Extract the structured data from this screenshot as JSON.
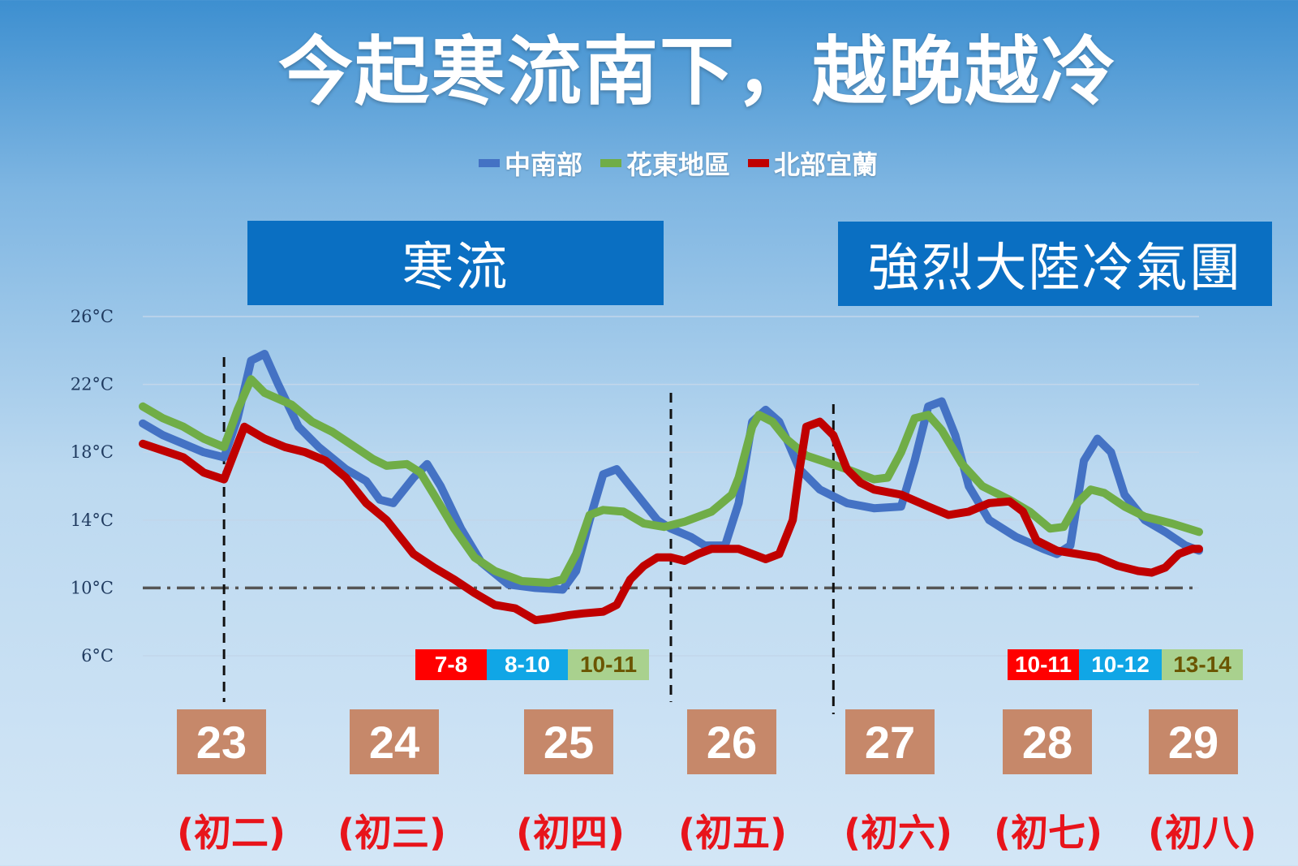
{
  "title": "今起寒流南下，越晚越冷",
  "banners": [
    "寒流",
    "強烈大陸冷氣團"
  ],
  "chart_data": {
    "type": "line",
    "legend_position": "top",
    "y_ticks": [
      "26°C",
      "22°C",
      "18°C",
      "14°C",
      "10°C",
      "6°C"
    ],
    "ylim": [
      6,
      26
    ],
    "x_range": [
      0,
      156
    ],
    "reference_line": {
      "y": 10,
      "style": "dash-dot"
    },
    "day_dividers_x": [
      12,
      78,
      102
    ],
    "series": [
      {
        "name": "中南部",
        "color": "#4472c4",
        "points": [
          [
            0,
            19.7
          ],
          [
            3,
            19
          ],
          [
            6,
            18.5
          ],
          [
            9,
            18
          ],
          [
            12,
            17.7
          ],
          [
            14,
            20
          ],
          [
            16,
            23.4
          ],
          [
            18,
            23.8
          ],
          [
            20,
            22
          ],
          [
            23,
            19.5
          ],
          [
            26,
            18.3
          ],
          [
            30,
            17
          ],
          [
            33,
            16.3
          ],
          [
            35,
            15.2
          ],
          [
            37,
            15
          ],
          [
            40,
            16.5
          ],
          [
            42,
            17.3
          ],
          [
            44,
            16
          ],
          [
            47,
            13.5
          ],
          [
            50,
            11.5
          ],
          [
            54,
            10.2
          ],
          [
            58,
            10
          ],
          [
            62,
            9.9
          ],
          [
            64,
            11
          ],
          [
            66,
            14
          ],
          [
            68,
            16.7
          ],
          [
            70,
            17
          ],
          [
            72,
            16
          ],
          [
            76,
            14
          ],
          [
            78,
            13.5
          ],
          [
            81,
            13
          ],
          [
            83,
            12.5
          ],
          [
            86,
            12.5
          ],
          [
            88,
            15
          ],
          [
            90,
            19.8
          ],
          [
            92,
            20.5
          ],
          [
            94,
            19.8
          ],
          [
            97,
            17
          ],
          [
            100,
            15.8
          ],
          [
            104,
            15
          ],
          [
            108,
            14.7
          ],
          [
            112,
            14.8
          ],
          [
            114,
            17.5
          ],
          [
            116,
            20.7
          ],
          [
            118,
            21
          ],
          [
            120,
            19
          ],
          [
            122,
            16
          ],
          [
            125,
            14
          ],
          [
            129,
            13
          ],
          [
            133,
            12.3
          ],
          [
            135,
            12
          ],
          [
            137,
            12.5
          ],
          [
            139,
            17.5
          ],
          [
            141,
            18.8
          ],
          [
            143,
            18
          ],
          [
            145,
            15.5
          ],
          [
            148,
            14
          ],
          [
            151,
            13.3
          ],
          [
            154,
            12.5
          ],
          [
            156,
            12.2
          ]
        ]
      },
      {
        "name": "花東地區",
        "color": "#70ad47",
        "points": [
          [
            0,
            20.7
          ],
          [
            3,
            20
          ],
          [
            6,
            19.5
          ],
          [
            9,
            18.8
          ],
          [
            12,
            18.3
          ],
          [
            14,
            20.5
          ],
          [
            16,
            22.3
          ],
          [
            18,
            21.5
          ],
          [
            22,
            20.8
          ],
          [
            25,
            19.8
          ],
          [
            28,
            19.2
          ],
          [
            31,
            18.4
          ],
          [
            34,
            17.6
          ],
          [
            36,
            17.2
          ],
          [
            39,
            17.3
          ],
          [
            41,
            16.8
          ],
          [
            43,
            15.5
          ],
          [
            46,
            13.5
          ],
          [
            49,
            11.8
          ],
          [
            52,
            11
          ],
          [
            56,
            10.4
          ],
          [
            60,
            10.3
          ],
          [
            62,
            10.5
          ],
          [
            64,
            12
          ],
          [
            66,
            14.3
          ],
          [
            68,
            14.6
          ],
          [
            71,
            14.5
          ],
          [
            74,
            13.8
          ],
          [
            77,
            13.6
          ],
          [
            80,
            13.9
          ],
          [
            84,
            14.5
          ],
          [
            87,
            15.5
          ],
          [
            88,
            16.5
          ],
          [
            90,
            19.5
          ],
          [
            91,
            20.2
          ],
          [
            93,
            19.8
          ],
          [
            95,
            18.8
          ],
          [
            98,
            17.8
          ],
          [
            101,
            17.4
          ],
          [
            104,
            17
          ],
          [
            106,
            16.7
          ],
          [
            108,
            16.4
          ],
          [
            110,
            16.5
          ],
          [
            112,
            18
          ],
          [
            114,
            20
          ],
          [
            116,
            20.2
          ],
          [
            118,
            19.3
          ],
          [
            121,
            17.3
          ],
          [
            124,
            16
          ],
          [
            128,
            15.2
          ],
          [
            131,
            14.5
          ],
          [
            134,
            13.5
          ],
          [
            136,
            13.6
          ],
          [
            138,
            15
          ],
          [
            140,
            15.8
          ],
          [
            142,
            15.6
          ],
          [
            145,
            14.8
          ],
          [
            148,
            14.2
          ],
          [
            152,
            13.8
          ],
          [
            156,
            13.3
          ]
        ]
      },
      {
        "name": "北部宜蘭",
        "color": "#c00000",
        "points": [
          [
            0,
            18.5
          ],
          [
            3,
            18.1
          ],
          [
            6,
            17.7
          ],
          [
            9,
            16.8
          ],
          [
            12,
            16.4
          ],
          [
            15,
            19.5
          ],
          [
            18,
            18.8
          ],
          [
            21,
            18.3
          ],
          [
            24,
            18
          ],
          [
            27,
            17.5
          ],
          [
            30,
            16.5
          ],
          [
            33,
            15
          ],
          [
            36,
            14
          ],
          [
            40,
            12
          ],
          [
            43,
            11.2
          ],
          [
            46,
            10.5
          ],
          [
            49,
            9.7
          ],
          [
            52,
            9
          ],
          [
            55,
            8.8
          ],
          [
            58,
            8.1
          ],
          [
            60,
            8.2
          ],
          [
            63,
            8.4
          ],
          [
            65,
            8.5
          ],
          [
            68,
            8.6
          ],
          [
            70,
            9
          ],
          [
            72,
            10.5
          ],
          [
            74,
            11.3
          ],
          [
            76,
            11.8
          ],
          [
            78,
            11.8
          ],
          [
            80,
            11.6
          ],
          [
            82,
            12
          ],
          [
            84,
            12.3
          ],
          [
            88,
            12.3
          ],
          [
            90,
            12
          ],
          [
            92,
            11.7
          ],
          [
            94,
            12
          ],
          [
            96,
            14
          ],
          [
            97,
            17
          ],
          [
            98,
            19.5
          ],
          [
            100,
            19.8
          ],
          [
            102,
            19
          ],
          [
            104,
            17
          ],
          [
            106,
            16.2
          ],
          [
            108,
            15.8
          ],
          [
            112,
            15.5
          ],
          [
            116,
            14.8
          ],
          [
            119,
            14.3
          ],
          [
            122,
            14.5
          ],
          [
            125,
            15
          ],
          [
            128,
            15.1
          ],
          [
            130,
            14.5
          ],
          [
            132,
            12.8
          ],
          [
            135,
            12.2
          ],
          [
            138,
            12
          ],
          [
            141,
            11.8
          ],
          [
            144,
            11.3
          ],
          [
            147,
            11
          ],
          [
            149,
            10.9
          ],
          [
            151,
            11.2
          ],
          [
            153,
            12
          ],
          [
            155,
            12.3
          ],
          [
            156,
            12.3
          ]
        ]
      }
    ]
  },
  "range_labels": [
    [
      {
        "text": "7-8",
        "bg": "#ff0000",
        "fg": "#ffffff"
      },
      {
        "text": "8-10",
        "bg": "#10a6e6",
        "fg": "#ffffff"
      },
      {
        "text": "10-11",
        "bg": "#a9d18e",
        "fg": "#6b5500"
      }
    ],
    [
      {
        "text": "10-11",
        "bg": "#ff0000",
        "fg": "#ffffff"
      },
      {
        "text": "10-12",
        "bg": "#10a6e6",
        "fg": "#ffffff"
      },
      {
        "text": "13-14",
        "bg": "#a9d18e",
        "fg": "#6b5500"
      }
    ]
  ],
  "days": [
    {
      "date": "23",
      "lunar": "(初二)"
    },
    {
      "date": "24",
      "lunar": "(初三)"
    },
    {
      "date": "25",
      "lunar": "(初四)"
    },
    {
      "date": "26",
      "lunar": "(初五)"
    },
    {
      "date": "27",
      "lunar": "(初六)"
    },
    {
      "date": "28",
      "lunar": "(初七)"
    },
    {
      "date": "29",
      "lunar": "(初八)"
    }
  ]
}
